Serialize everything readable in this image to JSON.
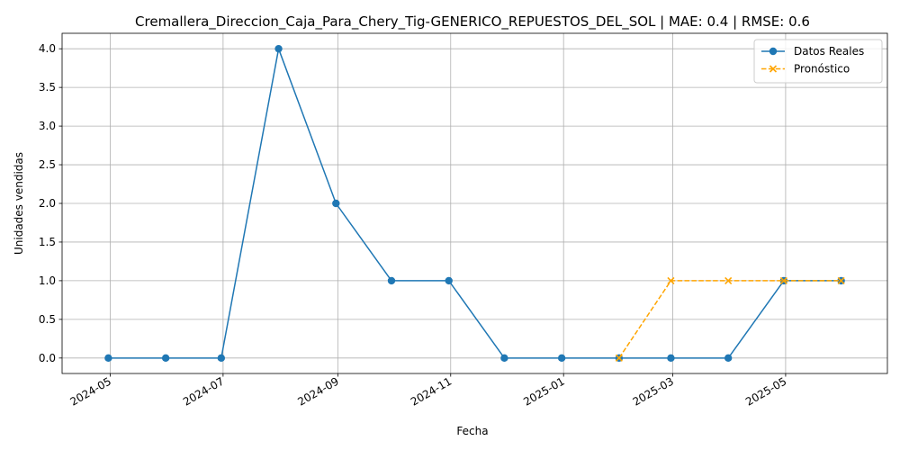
{
  "chart_data": {
    "type": "line",
    "title": "Cremallera_Direccion_Caja_Para_Chery_Tig-GENERICO_REPUESTOS_DEL_SOL | MAE: 0.4 | RMSE: 0.6",
    "xlabel": "Fecha",
    "ylabel": "Unidades vendidas",
    "ylim": [
      -0.2,
      4.2
    ],
    "yticks": [
      0.0,
      0.5,
      1.0,
      1.5,
      2.0,
      2.5,
      3.0,
      3.5,
      4.0
    ],
    "ytick_labels": [
      "0.0",
      "0.5",
      "1.0",
      "1.5",
      "2.0",
      "2.5",
      "3.0",
      "3.5",
      "4.0"
    ],
    "xlim": [
      "2024-04-05",
      "2025-06-25"
    ],
    "xticks": [
      "2024-05-01",
      "2024-07-01",
      "2024-09-01",
      "2024-11-01",
      "2025-01-01",
      "2025-03-01",
      "2025-05-01"
    ],
    "xtick_labels": [
      "2024-05",
      "2024-07",
      "2024-09",
      "2024-11",
      "2025-01",
      "2025-03",
      "2025-05"
    ],
    "grid": true,
    "legend_position": "top-right",
    "series": [
      {
        "name": "Datos Reales",
        "color": "#1f77b4",
        "marker": "circle",
        "linestyle": "solid",
        "x": [
          "2024-04-30",
          "2024-05-31",
          "2024-06-30",
          "2024-07-31",
          "2024-08-31",
          "2024-09-30",
          "2024-10-31",
          "2024-11-30",
          "2024-12-31",
          "2025-01-31",
          "2025-02-28",
          "2025-03-31",
          "2025-04-30",
          "2025-05-31"
        ],
        "values": [
          0,
          0,
          0,
          4,
          2,
          1,
          1,
          0,
          0,
          0,
          0,
          0,
          1,
          1
        ]
      },
      {
        "name": "Pronóstico",
        "color": "#ffa500",
        "marker": "x",
        "linestyle": "dashed",
        "x": [
          "2025-01-31",
          "2025-02-28",
          "2025-03-31",
          "2025-04-30",
          "2025-05-31"
        ],
        "values": [
          0,
          1,
          1,
          1,
          1
        ]
      }
    ]
  }
}
